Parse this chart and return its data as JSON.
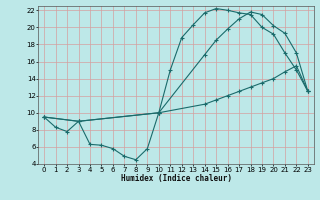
{
  "xlabel": "Humidex (Indice chaleur)",
  "bg_color": "#bde8e8",
  "grid_color": "#d4a0a0",
  "line_color": "#1a6b6b",
  "xlim": [
    -0.5,
    23.5
  ],
  "ylim": [
    4,
    22.5
  ],
  "xticks": [
    0,
    1,
    2,
    3,
    4,
    5,
    6,
    7,
    8,
    9,
    10,
    11,
    12,
    13,
    14,
    15,
    16,
    17,
    18,
    19,
    20,
    21,
    22,
    23
  ],
  "yticks": [
    4,
    6,
    8,
    10,
    12,
    14,
    16,
    18,
    20,
    22
  ],
  "curve1_x": [
    0,
    1,
    2,
    3,
    4,
    5,
    6,
    7,
    8,
    9,
    10,
    11,
    12,
    13,
    14,
    15,
    16,
    17,
    18,
    19,
    20,
    21,
    22,
    23
  ],
  "curve1_y": [
    9.5,
    8.3,
    7.8,
    9.0,
    6.3,
    6.2,
    5.8,
    4.9,
    4.5,
    5.8,
    10.0,
    15.0,
    18.8,
    20.3,
    21.7,
    22.2,
    22.0,
    21.7,
    21.5,
    20.0,
    19.2,
    17.0,
    15.0,
    12.5
  ],
  "curve2_x": [
    0,
    3,
    10,
    14,
    15,
    16,
    17,
    18,
    19,
    20,
    21,
    22,
    23
  ],
  "curve2_y": [
    9.5,
    9.0,
    10.0,
    16.8,
    18.5,
    19.8,
    21.0,
    21.8,
    21.5,
    20.2,
    19.3,
    17.0,
    12.5
  ],
  "curve3_x": [
    0,
    3,
    10,
    14,
    15,
    16,
    17,
    18,
    19,
    20,
    21,
    22,
    23
  ],
  "curve3_y": [
    9.5,
    9.0,
    10.0,
    11.0,
    11.5,
    12.0,
    12.5,
    13.0,
    13.5,
    14.0,
    14.8,
    15.5,
    12.5
  ]
}
